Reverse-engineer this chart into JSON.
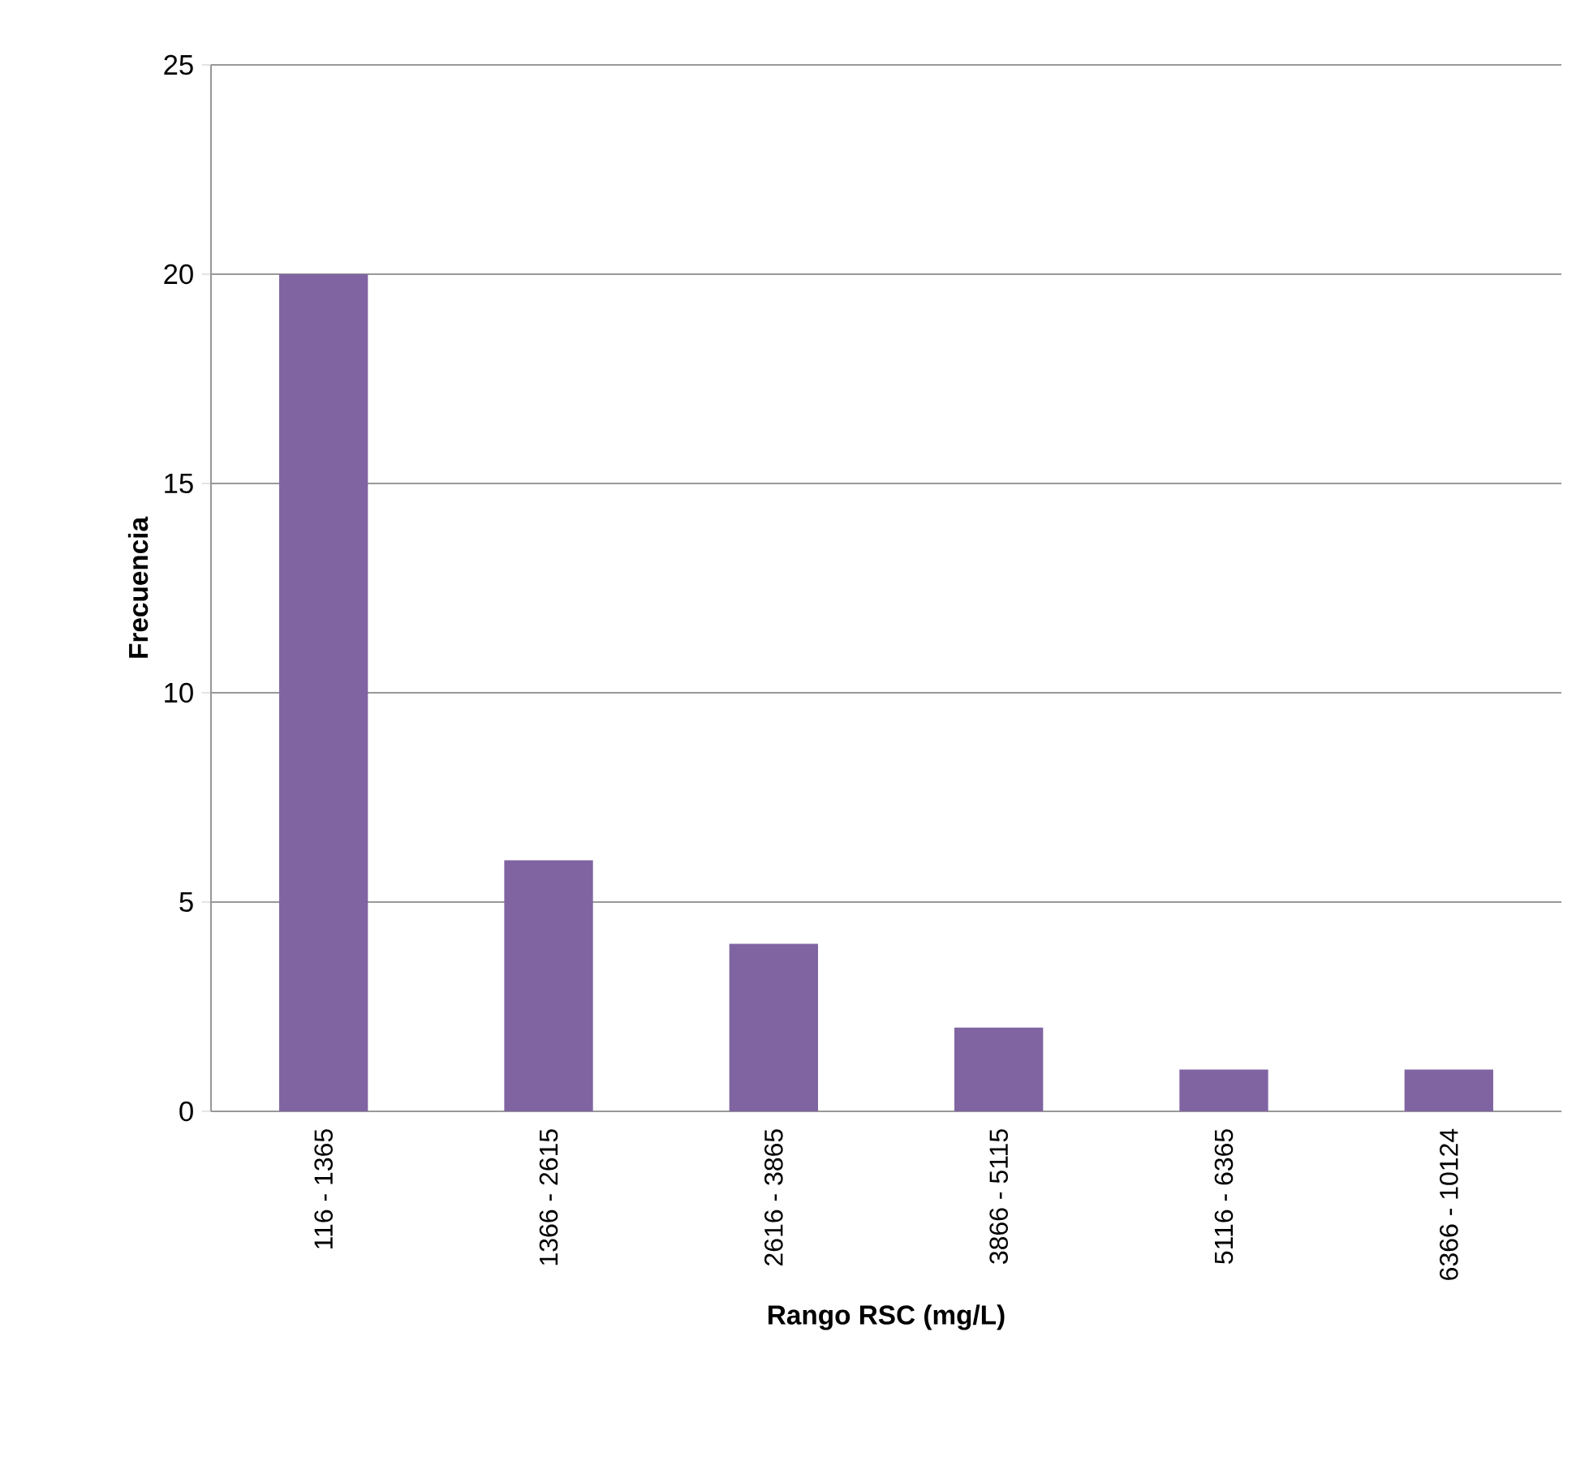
{
  "chart_data": {
    "type": "bar",
    "xlabel": "Rango RSC (mg/L)",
    "ylabel": "Frecuencia",
    "categories": [
      "116 - 1365",
      "1366 - 2615",
      "2616 - 3865",
      "3866 - 5115",
      "5116 - 6365",
      "6366 - 10124"
    ],
    "values": [
      20,
      6,
      4,
      2,
      1,
      1
    ],
    "color": "#8064a2",
    "ylim": [
      0,
      25
    ],
    "yticks": [
      0,
      5,
      10,
      15,
      20,
      25
    ],
    "grid": "y"
  }
}
